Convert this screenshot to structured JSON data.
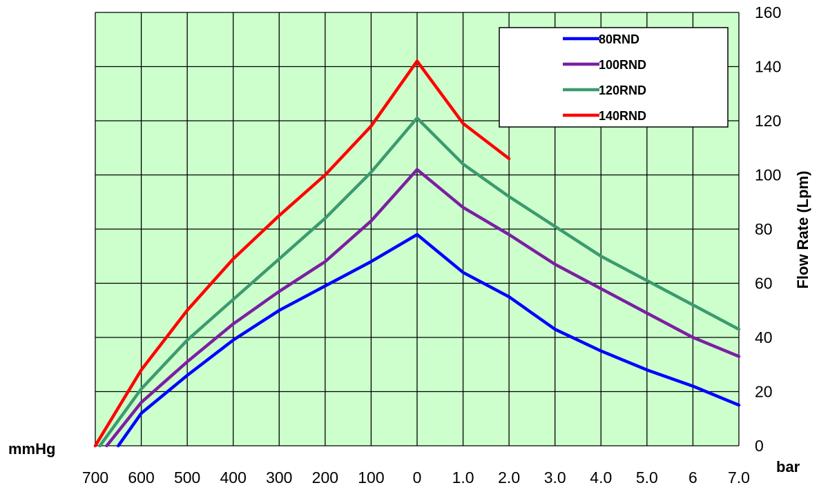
{
  "chart_data": {
    "type": "line",
    "title": "",
    "xlabel_left": "mmHg",
    "xlabel_right": "bar",
    "ylabel": "Flow Rate (Lpm)",
    "ylim": [
      0,
      160
    ],
    "y_ticks": [
      "0",
      "20",
      "40",
      "60",
      "80",
      "100",
      "120",
      "140",
      "160"
    ],
    "x_tick_labels": [
      "700",
      "600",
      "500",
      "400",
      "300",
      "200",
      "100",
      "0",
      "1.0",
      "2.0",
      "3.0",
      "4.0",
      "5.0",
      "6",
      "7.0"
    ],
    "x_scale_note": "vacuum side left of 0 (mmHg), pressure side right of 0 (bar)",
    "grid": true,
    "background_color": "#ccffcc",
    "legend_position": "top-right",
    "series": [
      {
        "name": "80RND",
        "color": "#0000ff",
        "points": [
          {
            "x": "650 mmHg",
            "y": 0
          },
          {
            "x": "600 mmHg",
            "y": 12
          },
          {
            "x": "500 mmHg",
            "y": 26
          },
          {
            "x": "400 mmHg",
            "y": 39
          },
          {
            "x": "300 mmHg",
            "y": 50
          },
          {
            "x": "200 mmHg",
            "y": 59
          },
          {
            "x": "100 mmHg",
            "y": 68
          },
          {
            "x": "0",
            "y": 78
          },
          {
            "x": "1.0 bar",
            "y": 64
          },
          {
            "x": "2.0 bar",
            "y": 55
          },
          {
            "x": "3.0 bar",
            "y": 43
          },
          {
            "x": "4.0 bar",
            "y": 35
          },
          {
            "x": "5.0 bar",
            "y": 28
          },
          {
            "x": "6 bar",
            "y": 22
          },
          {
            "x": "7.0 bar",
            "y": 15
          }
        ]
      },
      {
        "name": "100RND",
        "color": "#7b1fa2",
        "points": [
          {
            "x": "675 mmHg",
            "y": 0
          },
          {
            "x": "600 mmHg",
            "y": 16
          },
          {
            "x": "500 mmHg",
            "y": 31
          },
          {
            "x": "400 mmHg",
            "y": 45
          },
          {
            "x": "300 mmHg",
            "y": 57
          },
          {
            "x": "200 mmHg",
            "y": 68
          },
          {
            "x": "100 mmHg",
            "y": 83
          },
          {
            "x": "0",
            "y": 102
          },
          {
            "x": "1.0 bar",
            "y": 88
          },
          {
            "x": "2.0 bar",
            "y": 78
          },
          {
            "x": "3.0 bar",
            "y": 67
          },
          {
            "x": "4.0 bar",
            "y": 58
          },
          {
            "x": "5.0 bar",
            "y": 49
          },
          {
            "x": "6 bar",
            "y": 40
          },
          {
            "x": "7.0 bar",
            "y": 33
          }
        ]
      },
      {
        "name": "120RND",
        "color": "#3c9a6e",
        "points": [
          {
            "x": "690 mmHg",
            "y": 0
          },
          {
            "x": "600 mmHg",
            "y": 21
          },
          {
            "x": "500 mmHg",
            "y": 39
          },
          {
            "x": "400 mmHg",
            "y": 54
          },
          {
            "x": "300 mmHg",
            "y": 69
          },
          {
            "x": "200 mmHg",
            "y": 84
          },
          {
            "x": "100 mmHg",
            "y": 101
          },
          {
            "x": "0",
            "y": 121
          },
          {
            "x": "1.0 bar",
            "y": 104
          },
          {
            "x": "2.0 bar",
            "y": 92
          },
          {
            "x": "3.0 bar",
            "y": 81
          },
          {
            "x": "4.0 bar",
            "y": 70
          },
          {
            "x": "5.0 bar",
            "y": 61
          },
          {
            "x": "6 bar",
            "y": 52
          },
          {
            "x": "7.0 bar",
            "y": 43
          }
        ]
      },
      {
        "name": "140RND",
        "color": "#ff0000",
        "points": [
          {
            "x": "700 mmHg",
            "y": 0
          },
          {
            "x": "600 mmHg",
            "y": 28
          },
          {
            "x": "500 mmHg",
            "y": 50
          },
          {
            "x": "400 mmHg",
            "y": 69
          },
          {
            "x": "300 mmHg",
            "y": 85
          },
          {
            "x": "200 mmHg",
            "y": 100
          },
          {
            "x": "100 mmHg",
            "y": 118
          },
          {
            "x": "0",
            "y": 142
          },
          {
            "x": "1.0 bar",
            "y": 119
          },
          {
            "x": "2.0 bar",
            "y": 106
          }
        ]
      }
    ]
  }
}
